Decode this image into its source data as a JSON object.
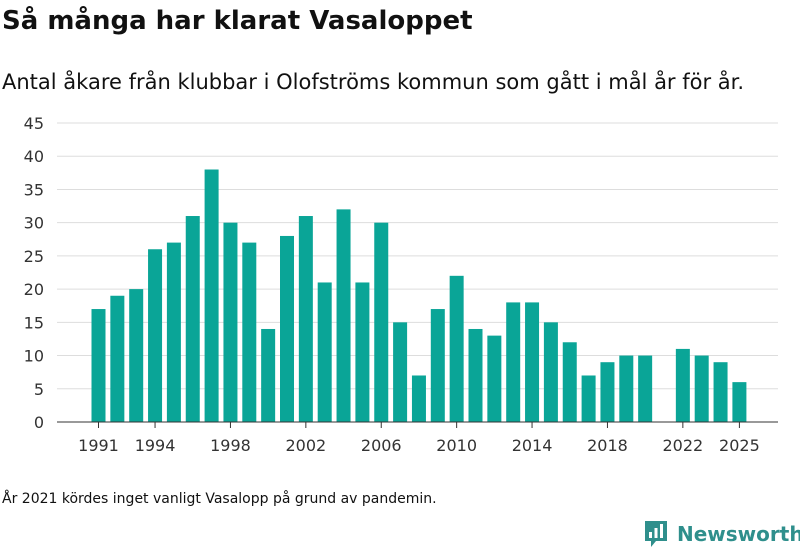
{
  "title": "Så många har klarat Vasaloppet",
  "subtitle": "Antal åkare från klubbar i Olofströms kommun som gått i mål år för år.",
  "note": "År 2021 kördes inget vanligt Vasalopp på grund av pandemin.",
  "brand": {
    "name": "Newsworthy",
    "icon": "newsworthy-logo-icon",
    "color": "#2f8f8c"
  },
  "chart_data": {
    "type": "bar",
    "title": "Så många har klarat Vasaloppet",
    "subtitle": "Antal åkare från klubbar i Olofströms kommun som gått i mål år för år.",
    "xlabel": "",
    "ylabel": "",
    "ylim": [
      0,
      45
    ],
    "yticks": [
      "0",
      "5",
      "10",
      "15",
      "20",
      "25",
      "30",
      "35",
      "40",
      "45"
    ],
    "xticks": [
      "1991",
      "1994",
      "1998",
      "2002",
      "2006",
      "2010",
      "2014",
      "2018",
      "2022",
      "2025"
    ],
    "grid": true,
    "bar_color": "#0aa597",
    "categories": [
      1991,
      1992,
      1993,
      1994,
      1995,
      1996,
      1997,
      1998,
      1999,
      2000,
      2001,
      2002,
      2003,
      2004,
      2005,
      2006,
      2007,
      2008,
      2009,
      2010,
      2011,
      2012,
      2013,
      2014,
      2015,
      2016,
      2017,
      2018,
      2019,
      2020,
      2021,
      2022,
      2023,
      2024,
      2025
    ],
    "values": [
      17,
      19,
      20,
      26,
      27,
      31,
      38,
      30,
      27,
      14,
      28,
      31,
      21,
      32,
      21,
      30,
      15,
      7,
      17,
      22,
      14,
      13,
      18,
      18,
      15,
      12,
      7,
      9,
      10,
      10,
      null,
      11,
      10,
      9,
      6
    ]
  }
}
